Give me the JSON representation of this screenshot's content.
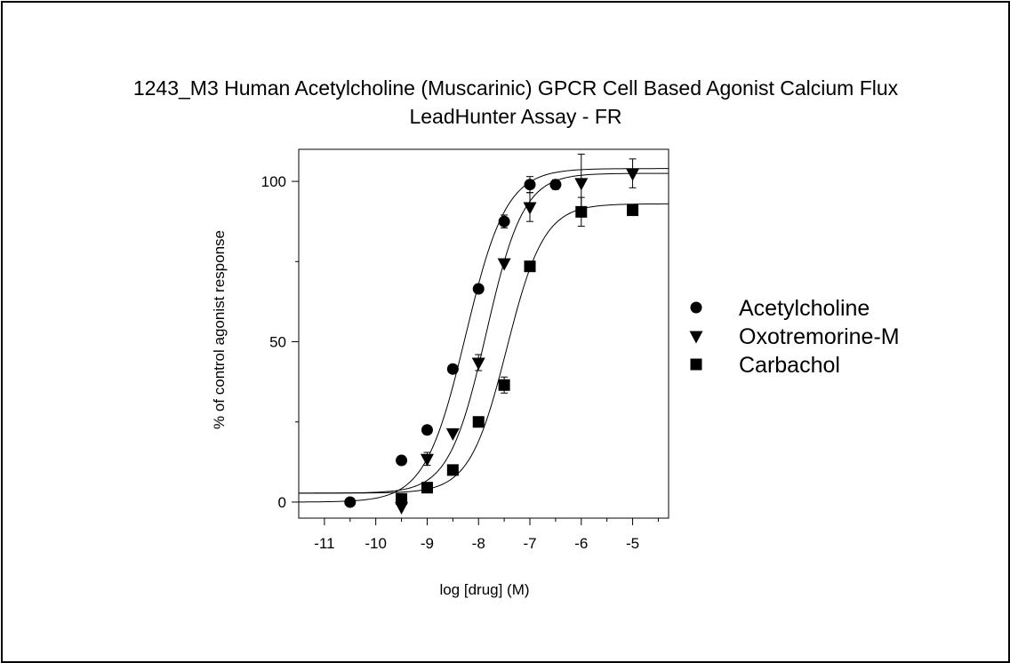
{
  "chart_data": {
    "type": "scatter",
    "title": "1243_M3 Human Acetylcholine (Muscarinic) GPCR Cell Based Agonist Calcium Flux",
    "subtitle": "LeadHunter Assay - FR",
    "xlabel": "log [drug]  (M)",
    "ylabel": "% of control agonist response",
    "xlim": [
      -11.5,
      -4.3
    ],
    "ylim": [
      -5,
      110
    ],
    "xticks": [
      -11,
      -10,
      -9,
      -8,
      -7,
      -6,
      -5
    ],
    "yticks": [
      0,
      50,
      100
    ],
    "legend_position": "right",
    "grid": false,
    "series": [
      {
        "name": "Acetylcholine",
        "marker": "circle",
        "x": [
          -10.5,
          -9.5,
          -9,
          -8.5,
          -8,
          -7.5,
          -7,
          -6.5
        ],
        "y": [
          0,
          13,
          22.5,
          41.5,
          66.5,
          87.5,
          99,
          99
        ],
        "err": [
          0,
          0,
          0,
          0,
          1,
          2,
          2.5,
          1.5
        ],
        "fit": {
          "bottom": 0,
          "top": 104,
          "logEC50": -8.25,
          "hill": 1.1
        }
      },
      {
        "name": "Oxotremorine-M",
        "marker": "triangle-down",
        "x": [
          -9.5,
          -9,
          -8.5,
          -8,
          -7.5,
          -7,
          -6,
          -5
        ],
        "y": [
          -1.5,
          13.5,
          21.5,
          43.5,
          74.5,
          92,
          99.5,
          102.5
        ],
        "err": [
          0,
          2,
          0,
          2.5,
          0,
          4.5,
          9,
          4.5
        ],
        "fit": {
          "bottom": 2.8,
          "top": 102.5,
          "logEC50": -7.85,
          "hill": 1.2
        }
      },
      {
        "name": "Carbachol",
        "marker": "square",
        "x": [
          -9.5,
          -9,
          -8.5,
          -8,
          -7.5,
          -7,
          -6,
          -5
        ],
        "y": [
          1,
          4.5,
          10,
          25,
          36.5,
          73.5,
          90.5,
          91
        ],
        "err": [
          0,
          0,
          0,
          0,
          2.5,
          0,
          4.5,
          1.5
        ],
        "fit": {
          "bottom": 2.8,
          "top": 93,
          "logEC50": -7.45,
          "hill": 1.2
        }
      }
    ]
  }
}
